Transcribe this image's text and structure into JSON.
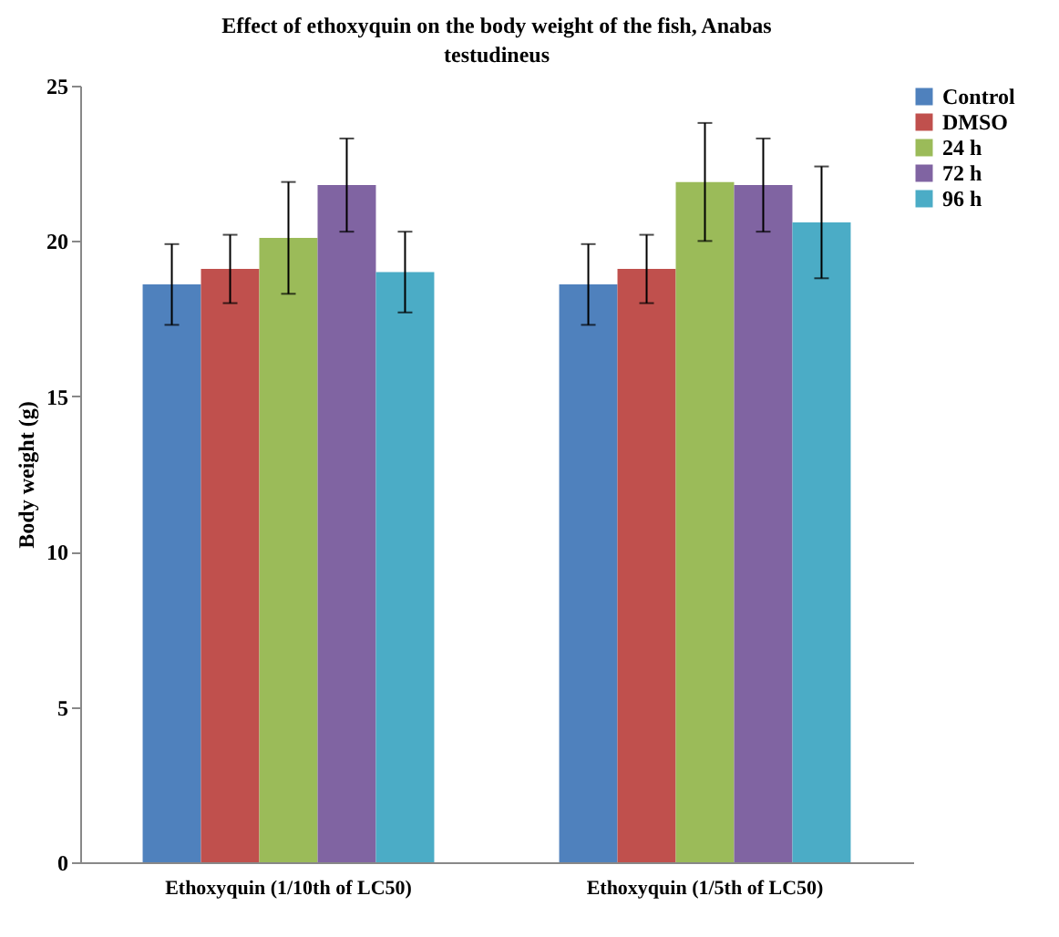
{
  "chart_data": {
    "type": "bar",
    "title": "Effect of ethoxyquin on the body weight of the fish, Anabas testudineus",
    "ylabel": "Body weight (g)",
    "categories": [
      "Ethoxyquin (1/10th of LC50)",
      "Ethoxyquin (1/5th of LC50)"
    ],
    "series": [
      {
        "name": "Control",
        "color": "#4f81bd",
        "values": [
          18.6,
          18.6
        ],
        "errors": [
          1.3,
          1.3
        ]
      },
      {
        "name": "DMSO",
        "color": "#c0504d",
        "values": [
          19.1,
          19.1
        ],
        "errors": [
          1.1,
          1.1
        ]
      },
      {
        "name": "24 h",
        "color": "#9bbb59",
        "values": [
          20.1,
          21.9
        ],
        "errors": [
          1.8,
          1.9
        ]
      },
      {
        "name": "72 h",
        "color": "#8064a2",
        "values": [
          21.8,
          21.8
        ],
        "errors": [
          1.5,
          1.5
        ]
      },
      {
        "name": "96 h",
        "color": "#4bacc6",
        "values": [
          19.0,
          20.6
        ],
        "errors": [
          1.3,
          1.8
        ]
      }
    ],
    "ylim": [
      0,
      25
    ],
    "yticks": [
      0,
      5,
      10,
      15,
      20,
      25
    ],
    "grid": false,
    "legend": "right"
  }
}
